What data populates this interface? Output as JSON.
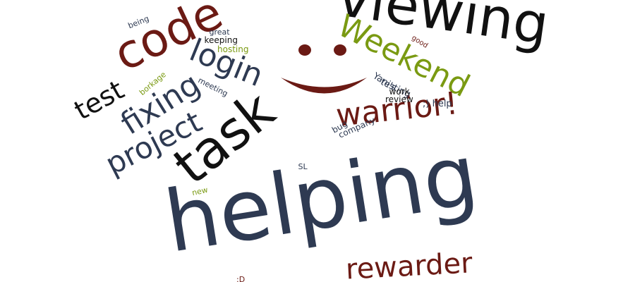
{
  "colors": {
    "dark_slate": "#2e3a52",
    "maroon": "#6b1a14",
    "black": "#111111",
    "olive_green": "#7a9a12"
  },
  "icon": "smiley-face-icon",
  "words": [
    {
      "id": "viewing",
      "text": "viewing",
      "color": "#111111"
    },
    {
      "id": "code",
      "text": "code",
      "color": "#6b1a14"
    },
    {
      "id": "weekend",
      "text": "Weekend",
      "color": "#7a9a12"
    },
    {
      "id": "login",
      "text": "login",
      "color": "#2e3a52"
    },
    {
      "id": "test",
      "text": "test",
      "color": "#111111"
    },
    {
      "id": "fixing",
      "text": "fixing",
      "color": "#2e3a52"
    },
    {
      "id": "project",
      "text": "project",
      "color": "#2e3a52"
    },
    {
      "id": "task",
      "text": "task",
      "color": "#111111"
    },
    {
      "id": "warrior",
      "text": "warrior!",
      "color": "#6b1a14"
    },
    {
      "id": "helping",
      "text": "helping",
      "color": "#2e3a52"
    },
    {
      "id": "rewarder",
      "text": "rewarder",
      "color": "#6b1a14"
    },
    {
      "id": "being",
      "text": "being",
      "color": "#2e3a52"
    },
    {
      "id": "great",
      "text": "great",
      "color": "#2e3a52"
    },
    {
      "id": "keeping",
      "text": "keeping",
      "color": "#111111"
    },
    {
      "id": "hosting",
      "text": "hosting",
      "color": "#7a9a12"
    },
    {
      "id": "borkage",
      "text": "borkage",
      "color": "#7a9a12"
    },
    {
      "id": "meeting",
      "text": "meeting",
      "color": "#2e3a52"
    },
    {
      "id": "good",
      "text": "good",
      "color": "#6b1a14"
    },
    {
      "id": "yanis",
      "text": "Yani's",
      "color": "#2e3a52"
    },
    {
      "id": "testing",
      "text": "testing",
      "color": "#2e3a52"
    },
    {
      "id": "work",
      "text": "work",
      "color": "#111111"
    },
    {
      "id": "review",
      "text": "review",
      "color": "#111111"
    },
    {
      "id": "wink-help",
      "text": ";) help",
      "color": "#2e3a52"
    },
    {
      "id": "bug",
      "text": "bug",
      "color": "#2e3a52"
    },
    {
      "id": "company",
      "text": "company",
      "color": "#2e3a52"
    },
    {
      "id": "sl",
      "text": "SL",
      "color": "#2e3a52"
    },
    {
      "id": "new",
      "text": "new",
      "color": "#7a9a12"
    },
    {
      "id": "big-grin",
      "text": ":D",
      "color": "#6b1a14"
    }
  ]
}
